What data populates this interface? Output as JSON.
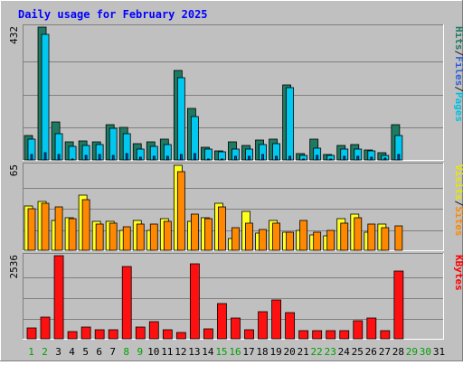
{
  "chart_data": {
    "type": "bar",
    "title": "Daily usage for February 2025",
    "days": [
      "1",
      "2",
      "3",
      "4",
      "5",
      "6",
      "7",
      "8",
      "9",
      "10",
      "11",
      "12",
      "13",
      "14",
      "15",
      "16",
      "17",
      "18",
      "19",
      "20",
      "21",
      "22",
      "23",
      "24",
      "25",
      "26",
      "27",
      "28",
      "29",
      "30",
      "31"
    ],
    "panels": [
      {
        "id": "hits",
        "max_label": "432",
        "ymax": 432,
        "right_labels": [
          {
            "text": "Hits",
            "color": "#1e7a62"
          },
          {
            "text": "/",
            "color": "#1a1a1a"
          },
          {
            "text": "Files",
            "color": "#2f5fd6"
          },
          {
            "text": "/",
            "color": "#1a1a1a"
          },
          {
            "text": "Pages",
            "color": "#00c0e0"
          }
        ],
        "series": [
          {
            "name": "Hits",
            "color": "#1e7a62",
            "values": [
              78,
              432,
              123,
              60,
              62,
              60,
              115,
              105,
              54,
              60,
              67,
              290,
              168,
              40,
              28,
              59,
              48,
              65,
              67,
              244,
              20,
              67,
              19,
              47,
              49,
              31,
              24,
              115,
              null,
              null,
              null
            ]
          },
          {
            "name": "Files",
            "color": "#00c8f0",
            "values": [
              67,
              409,
              86,
              43,
              48,
              49,
              102,
              86,
              35,
              45,
              51,
              268,
              140,
              36,
              26,
              36,
              36,
              51,
              54,
              234,
              16,
              39,
              14,
              36,
              36,
              28,
              15,
              78,
              null,
              null,
              null
            ]
          },
          {
            "name": "Pages",
            "color": "#0055cc",
            "values": [
              19,
              24,
              19,
              4,
              14,
              19,
              15,
              21,
              9,
              12,
              13,
              17,
              22,
              4,
              4,
              12,
              11,
              17,
              11,
              13,
              4,
              15,
              1,
              12,
              13,
              10,
              6,
              17,
              null,
              null,
              null
            ]
          }
        ]
      },
      {
        "id": "visits",
        "max_label": "65",
        "ymax": 65,
        "right_labels": [
          {
            "text": "Visits",
            "color": "#e8e800"
          },
          {
            "text": "/",
            "color": "#1a1a1a"
          },
          {
            "text": "Sites",
            "color": "#ff8800"
          }
        ],
        "series": [
          {
            "name": "Visits",
            "color": "#ffff20",
            "values": [
              34,
              37,
              23,
              25,
              42,
              22,
              22,
              15,
              23,
              15,
              24,
              65,
              22,
              25,
              36,
              9,
              30,
              13,
              23,
              14,
              15,
              12,
              11,
              24,
              28,
              14,
              20,
              null,
              null,
              null,
              null
            ]
          },
          {
            "name": "Sites",
            "color": "#ff8800",
            "values": [
              32,
              36,
              33,
              24,
              39,
              20,
              21,
              18,
              20,
              20,
              22,
              60,
              28,
              24,
              33,
              17,
              21,
              16,
              21,
              14,
              23,
              14,
              15,
              21,
              25,
              20,
              17,
              19,
              null,
              null,
              null
            ]
          }
        ]
      },
      {
        "id": "kbytes",
        "max_label": "2536",
        "ymax": 2536,
        "right_labels": [
          {
            "text": "KBytes",
            "color": "#ff0000"
          }
        ],
        "series": [
          {
            "name": "KBytes",
            "color": "#ff1010",
            "values": [
              340,
              660,
              2536,
              215,
              355,
              270,
              270,
              2210,
              345,
              515,
              275,
              190,
              2300,
              305,
              1070,
              640,
              275,
              820,
              1185,
              795,
              250,
              250,
              250,
              250,
              550,
              640,
              260,
              2080,
              null,
              null,
              null
            ]
          }
        ]
      }
    ],
    "weekend_days": [
      1,
      2,
      8,
      9,
      15,
      16,
      22,
      23,
      29,
      30
    ],
    "colors": {
      "background": "#c0c0c0",
      "plot_background": "#c0c0c0",
      "gridline": "#808080",
      "title": "#0000ff",
      "weekday_label": "#000000",
      "weekend_label": "#00a000"
    },
    "grid": true,
    "legend_position": "right (rotated)"
  }
}
